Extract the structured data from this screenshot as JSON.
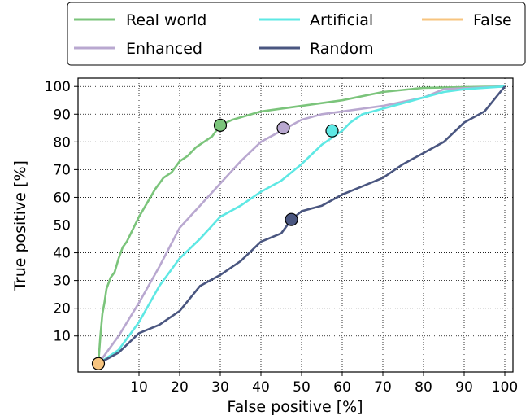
{
  "chart_data": {
    "type": "line",
    "xlabel": "False positive [%]",
    "ylabel": "True positive [%]",
    "xlim": [
      -5,
      102
    ],
    "ylim": [
      -3,
      103
    ],
    "xticks": [
      "10",
      "20",
      "30",
      "40",
      "50",
      "60",
      "70",
      "80",
      "90",
      "100"
    ],
    "yticks": [
      "10",
      "20",
      "30",
      "40",
      "50",
      "60",
      "70",
      "80",
      "90",
      "100"
    ],
    "grid": "dotted",
    "legend_position": "top (above plot)",
    "series": [
      {
        "name": "Real world",
        "color": "#7bc47b",
        "marker": [
          30,
          86
        ],
        "points": [
          [
            0,
            0
          ],
          [
            0.5,
            10
          ],
          [
            1,
            18
          ],
          [
            1.5,
            22
          ],
          [
            2,
            27
          ],
          [
            3,
            31
          ],
          [
            4,
            33
          ],
          [
            5,
            38
          ],
          [
            6,
            42
          ],
          [
            7,
            44
          ],
          [
            8,
            47
          ],
          [
            10,
            53
          ],
          [
            12,
            58
          ],
          [
            14,
            63
          ],
          [
            16,
            67
          ],
          [
            18,
            69
          ],
          [
            20,
            73
          ],
          [
            22,
            75
          ],
          [
            24,
            78
          ],
          [
            26,
            80
          ],
          [
            28,
            82
          ],
          [
            29,
            84
          ],
          [
            30,
            86
          ],
          [
            33,
            88
          ],
          [
            40,
            91
          ],
          [
            50,
            93
          ],
          [
            60,
            95
          ],
          [
            70,
            98
          ],
          [
            80,
            99.5
          ],
          [
            100,
            100
          ]
        ]
      },
      {
        "name": "Enhanced",
        "color": "#b9a8d0",
        "marker": [
          45.5,
          85
        ],
        "points": [
          [
            0,
            0
          ],
          [
            5,
            10
          ],
          [
            10,
            22
          ],
          [
            15,
            35
          ],
          [
            20,
            49
          ],
          [
            25,
            57
          ],
          [
            30,
            65
          ],
          [
            35,
            73
          ],
          [
            40,
            80
          ],
          [
            45,
            84
          ],
          [
            50,
            88
          ],
          [
            55,
            90
          ],
          [
            60,
            91
          ],
          [
            65,
            92
          ],
          [
            70,
            93
          ],
          [
            80,
            96
          ],
          [
            85,
            99
          ],
          [
            100,
            100
          ]
        ]
      },
      {
        "name": "Artificial",
        "color": "#5ee8e4",
        "marker": [
          57.5,
          84
        ],
        "points": [
          [
            0,
            0
          ],
          [
            5,
            5
          ],
          [
            10,
            15
          ],
          [
            15,
            28
          ],
          [
            20,
            38
          ],
          [
            25,
            45
          ],
          [
            30,
            53
          ],
          [
            35,
            57
          ],
          [
            40,
            62
          ],
          [
            45,
            66
          ],
          [
            50,
            72
          ],
          [
            55,
            79
          ],
          [
            60,
            84
          ],
          [
            62,
            87
          ],
          [
            65,
            90
          ],
          [
            70,
            92
          ],
          [
            75,
            94
          ],
          [
            80,
            96
          ],
          [
            85,
            98
          ],
          [
            90,
            99
          ],
          [
            100,
            100
          ]
        ]
      },
      {
        "name": "Random",
        "color": "#4a5680",
        "marker": [
          47.5,
          52
        ],
        "points": [
          [
            0,
            0
          ],
          [
            5,
            4
          ],
          [
            10,
            11
          ],
          [
            15,
            14
          ],
          [
            20,
            19
          ],
          [
            25,
            28
          ],
          [
            30,
            32
          ],
          [
            35,
            37
          ],
          [
            40,
            44
          ],
          [
            45,
            47
          ],
          [
            47.5,
            52
          ],
          [
            50,
            55
          ],
          [
            55,
            57
          ],
          [
            60,
            61
          ],
          [
            65,
            64
          ],
          [
            70,
            67
          ],
          [
            75,
            72
          ],
          [
            80,
            76
          ],
          [
            85,
            80
          ],
          [
            90,
            87
          ],
          [
            95,
            91
          ],
          [
            100,
            100
          ]
        ]
      },
      {
        "name": "False",
        "color": "#f7c47f",
        "marker": [
          0,
          0
        ],
        "points": []
      }
    ]
  }
}
